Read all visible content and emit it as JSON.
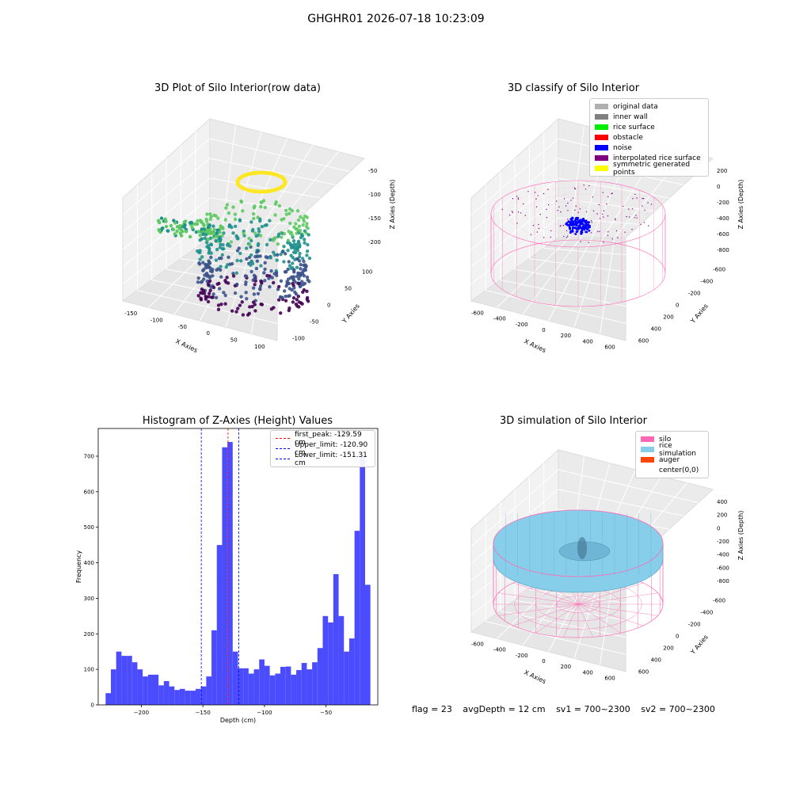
{
  "suptitle": "GHGHR01 2026-07-18 10:23:09",
  "footer": {
    "flag": "flag = 23",
    "avg_depth": "avgDepth = 12 cm",
    "sv1": "sv1 = 700~2300",
    "sv2": "sv2 = 700~2300"
  },
  "chart_data": [
    {
      "type": "scatter",
      "title": "3D Plot of Silo Interior(row data)",
      "xlabel": "X Axies",
      "ylabel": "Y Axies",
      "zlabel": "Z Axies (Depth)",
      "x_ticks": [
        "-150",
        "-100",
        "-50",
        "0",
        "50",
        "100"
      ],
      "y_ticks": [
        "-100",
        "-50",
        "0",
        "50",
        "100"
      ],
      "z_ticks": [
        "-50",
        "-100",
        "-150",
        "-200"
      ],
      "colormap": "viridis",
      "grid": true
    },
    {
      "type": "scatter",
      "title": "3D classify of Silo Interior",
      "xlabel": "X Axies",
      "ylabel": "Y Axies",
      "zlabel": "Z Axies (Depth)",
      "x_ticks": [
        "-600",
        "-400",
        "-200",
        "0",
        "200",
        "400",
        "600"
      ],
      "y_ticks": [
        "600",
        "400",
        "200",
        "0",
        "-200",
        "-400",
        "-600"
      ],
      "z_ticks": [
        "200",
        "0",
        "-200",
        "-400",
        "-600",
        "-800"
      ],
      "legend_position": "top-right",
      "legend": [
        {
          "label": "original data",
          "color": "#b0b0b0"
        },
        {
          "label": "inner wall",
          "color": "#808080"
        },
        {
          "label": "rice surface",
          "color": "#00ee00"
        },
        {
          "label": "obstacle",
          "color": "#ff0000"
        },
        {
          "label": "noise",
          "color": "#0000ff"
        },
        {
          "label": "interpolated rice surface",
          "color": "#800080"
        },
        {
          "label": "symmetric generated points",
          "color": "#ffff00"
        }
      ],
      "grid": true
    },
    {
      "type": "bar",
      "title": "Histogram of Z-Axies (Height) Values",
      "xlabel": "Depth (cm)",
      "ylabel": "Frequency",
      "x_ticks": [
        -200,
        -150,
        -100,
        -50
      ],
      "y_ticks": [
        0,
        100,
        200,
        300,
        400,
        500,
        600,
        700
      ],
      "xlim": [
        -235,
        -8
      ],
      "ylim": [
        0,
        778
      ],
      "bar_color": "#4c4cff",
      "bin_start": -229,
      "bin_width": 4.3,
      "values": [
        33,
        100,
        150,
        138,
        138,
        120,
        100,
        80,
        85,
        85,
        55,
        67,
        52,
        42,
        45,
        40,
        40,
        45,
        52,
        80,
        210,
        450,
        725,
        740,
        150,
        103,
        103,
        88,
        100,
        128,
        110,
        83,
        88,
        107,
        108,
        85,
        98,
        118,
        100,
        120,
        160,
        250,
        232,
        368,
        250,
        150,
        187,
        490,
        700,
        338
      ],
      "vlines": [
        {
          "label": "first_peak: -129.59 cm",
          "x": -129.59,
          "color": "#ff0000"
        },
        {
          "label": "Upper_limit: -120.90 cm",
          "x": -120.9,
          "color": "#0000ff"
        },
        {
          "label": "Lower_limit: -151.31 cm",
          "x": -151.31,
          "color": "#0000ff"
        }
      ],
      "legend_position": "top-right"
    },
    {
      "type": "scatter",
      "title": "3D simulation of Silo Interior",
      "xlabel": "X Axies",
      "ylabel": "Y Axies",
      "zlabel": "Z Axies (Depth)",
      "x_ticks": [
        "-600",
        "-400",
        "-200",
        "0",
        "200",
        "400",
        "600"
      ],
      "y_ticks": [
        "600",
        "400",
        "200",
        "0",
        "-200",
        "-400",
        "-600"
      ],
      "z_ticks": [
        "400",
        "200",
        "0",
        "-200",
        "-400",
        "-600",
        "-800"
      ],
      "legend_position": "top-right",
      "legend": [
        {
          "label": "silo",
          "color": "#ff69b4"
        },
        {
          "label": "rice simulation",
          "color": "#87ceeb"
        },
        {
          "label": "auger",
          "color": "#ff4500"
        },
        {
          "label": "center(0,0)",
          "color": "#ffffff"
        }
      ],
      "grid": true
    }
  ]
}
